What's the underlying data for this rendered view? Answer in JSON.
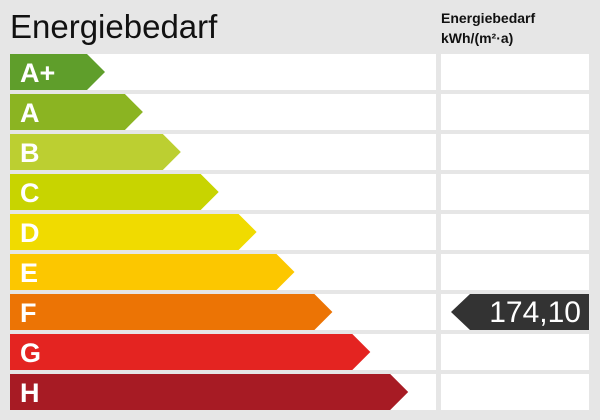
{
  "title": "Energiebedarf",
  "column_header": {
    "line1": "Energiebedarf",
    "line2": "kWh/(m²·a)"
  },
  "chart_data": {
    "type": "bar",
    "categories": [
      "A+",
      "A",
      "B",
      "C",
      "D",
      "E",
      "F",
      "G",
      "H"
    ],
    "colors": [
      "#5f9e2b",
      "#8bb422",
      "#bccf31",
      "#c8d400",
      "#f0db00",
      "#fcc700",
      "#ec7405",
      "#e42421",
      "#a71b24"
    ],
    "value": "174,10",
    "value_class": "F",
    "marker_color": "#333333"
  }
}
